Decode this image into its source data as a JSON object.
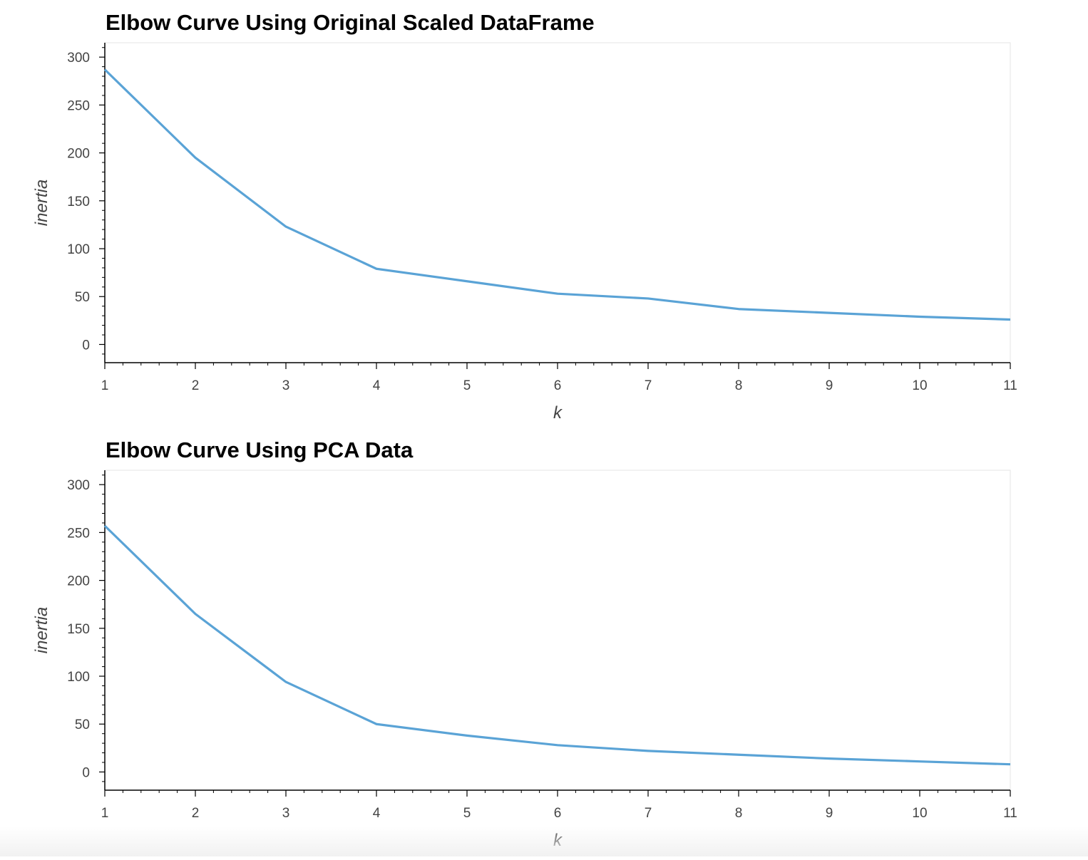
{
  "chart_data": [
    {
      "type": "line",
      "title": "Elbow Curve Using Original Scaled DataFrame",
      "xlabel": "k",
      "ylabel": "inertia",
      "x": [
        1,
        2,
        3,
        4,
        5,
        6,
        7,
        8,
        9,
        10,
        11
      ],
      "series": [
        {
          "values": [
            287,
            195,
            123,
            79,
            66,
            53,
            48,
            37,
            33,
            29,
            26
          ],
          "color": "#5aa3d6"
        }
      ],
      "xticks": [
        1,
        2,
        3,
        4,
        5,
        6,
        7,
        8,
        9,
        10,
        11
      ],
      "yticks": [
        0,
        50,
        100,
        150,
        200,
        250,
        300
      ],
      "xlim": [
        1,
        11
      ],
      "ylim": [
        -19,
        315
      ],
      "grid": false,
      "legend": "none"
    },
    {
      "type": "line",
      "title": "Elbow Curve Using PCA Data",
      "xlabel": "k",
      "ylabel": "inertia",
      "x": [
        1,
        2,
        3,
        4,
        5,
        6,
        7,
        8,
        9,
        10,
        11
      ],
      "series": [
        {
          "values": [
            257,
            165,
            94,
            50,
            38,
            28,
            22,
            18,
            14,
            11,
            8
          ],
          "color": "#5aa3d6"
        }
      ],
      "xticks": [
        1,
        2,
        3,
        4,
        5,
        6,
        7,
        8,
        9,
        10,
        11
      ],
      "yticks": [
        0,
        50,
        100,
        150,
        200,
        250,
        300
      ],
      "xlim": [
        1,
        11
      ],
      "ylim": [
        -19,
        315
      ],
      "grid": false,
      "legend": "none"
    }
  ]
}
